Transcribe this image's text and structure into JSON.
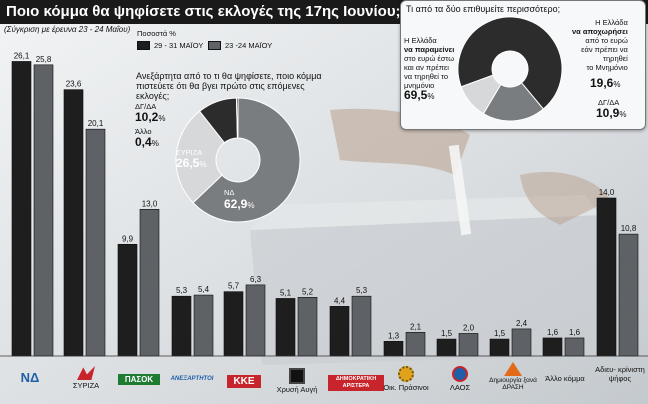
{
  "header": {
    "title": "Ποιο κόμμα θα ψηφίσετε στις εκλογές της 17ης Ιουνίου;",
    "subtitle": "(Σύγκριση με έρευνα 23 - 24 Μαΐου)"
  },
  "legend": {
    "title": "Ποσοστά %",
    "items": [
      "29 - 31 ΜΑΪΟΥ",
      "23 -24 ΜΑΪΟΥ"
    ]
  },
  "colors": {
    "series1": "#1e1e1e",
    "series2": "#5e6165",
    "donut_dark": "#2c2c2c",
    "donut_grey": "#7a7d80",
    "donut_light": "#d6d8da"
  },
  "chart_data": [
    {
      "type": "bar",
      "title": "Ποιο κόμμα θα ψηφίσετε στις εκλογές της 17ης Ιουνίου;",
      "categories": [
        "ΝΔ",
        "ΣΥΡΙΖΑ",
        "ΠΑΣΟΚ",
        "ΑΝΕΞΑΡΤΗΤΟΙ ΕΛΛΗΝΕΣ",
        "ΚΚΕ",
        "Χρυσή Αυγή",
        "ΔΗΜΟΚΡΑΤΙΚΗ ΑΡΙΣΤΕΡΑ",
        "Οικ. Πράσινοι",
        "ΛΑΟΣ",
        "Δημιουργία ξανά / ΔΡΑΣΗ",
        "Άλλο κόμμα",
        "Αδιευ-κρίνιστη ψήφος"
      ],
      "category_labels": [
        "ΝΔ",
        "ΣΥΡΙΖΑ",
        "ΠΑΣΟΚ",
        "ΑΝΕΞΑΡΤΗΤΟΙ",
        "ΚΚΕ",
        "Χρυσή Αυγή",
        "ΔΗΜΟΚΡΑΤΙΚΗ ΑΡΙΣΤΕΡΑ",
        "Οικ. Πράσινοι",
        "ΛΑΟΣ",
        "Δημιουργία ξανά",
        "Άλλο κόμμα",
        "Αδιευ- κρίνιστη ψήφος"
      ],
      "series": [
        {
          "name": "29 - 31 ΜΑΪΟΥ",
          "values": [
            26.1,
            23.6,
            9.9,
            5.3,
            5.7,
            5.1,
            4.4,
            1.3,
            1.5,
            1.5,
            1.6,
            14.0
          ],
          "labels": [
            "26,1",
            "23,6",
            "9,9",
            "5,3",
            "5,7",
            "5,1",
            "4,4",
            "1,3",
            "1,5",
            "1,5",
            "1,6",
            "14,0"
          ]
        },
        {
          "name": "23 -24 ΜΑΪΟΥ",
          "values": [
            25.8,
            20.1,
            13.0,
            5.4,
            6.3,
            5.2,
            5.3,
            2.1,
            2.0,
            2.4,
            1.6,
            10.8
          ],
          "labels": [
            "25,8",
            "20,1",
            "13,0",
            "5,4",
            "6,3",
            "5,2",
            "5,3",
            "2,1",
            "2,0",
            "2,4",
            "1,6",
            "10,8"
          ]
        }
      ],
      "ylim": [
        0,
        28
      ]
    },
    {
      "type": "pie",
      "title": "Ανεξάρτητα από το τι θα ψηφίσετε, ποιο κόμμα πιστεύετε ότι θα βγει πρώτο στις επόμενες εκλογές;",
      "slices": [
        {
          "label": "ΝΔ",
          "value": 62.9,
          "display": "62,9"
        },
        {
          "label": "ΣΥΡΙΖΑ",
          "value": 26.5,
          "display": "26,5"
        },
        {
          "label": "ΔΓ/ΔΑ",
          "value": 10.2,
          "display": "10,2"
        },
        {
          "label": "Άλλο",
          "value": 0.4,
          "display": "0,4"
        }
      ]
    },
    {
      "type": "pie",
      "title": "Τι από τα δύο επιθυμείτε περισσότερο;",
      "slices": [
        {
          "label": "Η Ελλάδα να παραμείνει στο ευρώ έστω και αν πρέπει να τηρηθεί το μνημόνιο",
          "value": 69.5,
          "display": "69,5"
        },
        {
          "label": "Η Ελλάδα να αποχωρήσει από το ευρώ εάν πρέπει να τηρηθεί το Μνημόνιο",
          "value": 19.6,
          "display": "19,6"
        },
        {
          "label": "ΔΓ/ΔΑ",
          "value": 10.9,
          "display": "10,9"
        }
      ]
    }
  ],
  "pie_left_text": {
    "question": "Ανεξάρτητα από το τι θα ψηφίσετε, ποιο κόμμα πιστεύετε ότι θα βγει πρώτο στις επόμενες εκλογές;",
    "dg_label": "ΔΓ/ΔΑ",
    "dg_value": "10,2",
    "other_label": "Άλλο",
    "other_value": "0,4",
    "syriza_label": "ΣΥΡΙΖΑ",
    "syriza_value": "26,5",
    "nd_label": "ΝΔ",
    "nd_value": "62,9",
    "pct": "%"
  },
  "pie_right_text": {
    "question": "Τι από τα δύο επιθυμείτε περισσότερο;",
    "stay_l1": "Η Ελλάδα",
    "stay_l2": "να παραμείνει",
    "stay_l3": "στο ευρώ έστω",
    "stay_l4": "και αν πρέπει",
    "stay_l5": "να τηρηθεί το",
    "stay_l6": "μνημόνιο",
    "stay_value": "69,5",
    "leave_l1": "Η Ελλάδα",
    "leave_l2": "να αποχωρήσει",
    "leave_l3": "από το ευρώ",
    "leave_l4": "εάν πρέπει να",
    "leave_l5": "τηρηθεί",
    "leave_l6": "το Μνημόνιο",
    "leave_value": "19,6",
    "dg_label": "ΔΓ/ΔΑ",
    "dg_value": "10,9",
    "pct": "%"
  }
}
